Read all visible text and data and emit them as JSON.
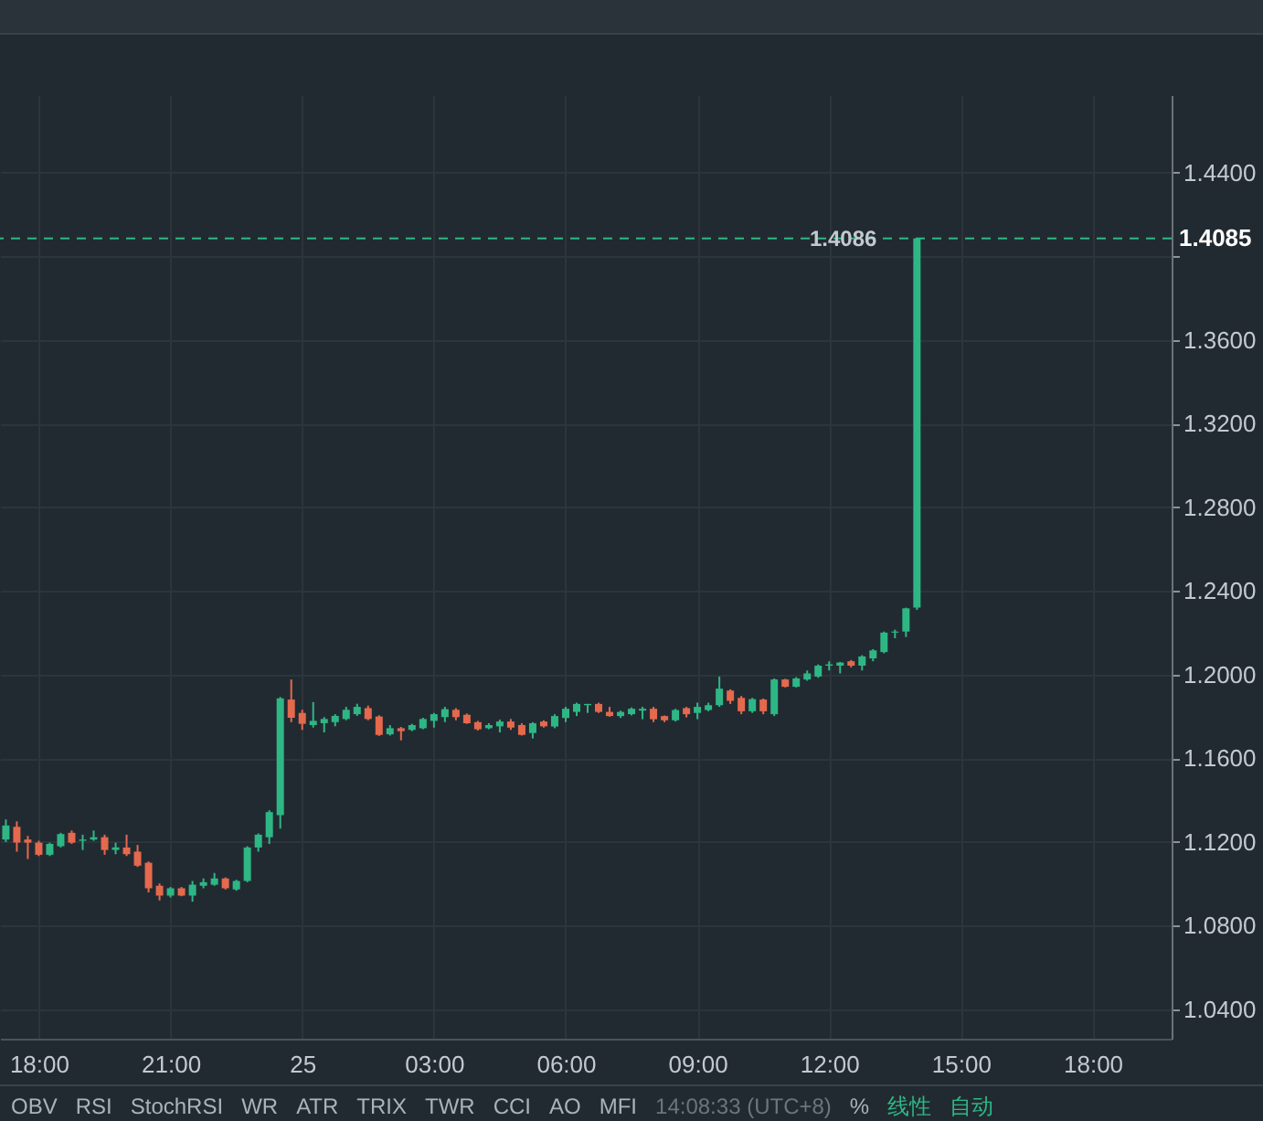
{
  "chart_data": {
    "type": "candlestick",
    "x": [
      "--01-24T17:15",
      "--01-24T17:30",
      "--01-24T17:45",
      "--01-24T18:00",
      "--01-24T18:15",
      "--01-24T18:30",
      "--01-24T18:45",
      "--01-24T19:00",
      "--01-24T19:15",
      "--01-24T19:30",
      "--01-24T19:45",
      "--01-24T20:00",
      "--01-24T20:15",
      "--01-24T20:30",
      "--01-24T20:45",
      "--01-24T21:00",
      "--01-24T21:15",
      "--01-24T21:30",
      "--01-24T21:45",
      "--01-24T22:00",
      "--01-24T22:15",
      "--01-24T22:30",
      "--01-24T22:45",
      "--01-24T23:00",
      "--01-24T23:15",
      "--01-24T23:30",
      "--01-24T23:45",
      "--01-25T00:00",
      "--01-25T00:15",
      "--01-25T00:30",
      "--01-25T00:45",
      "--01-25T01:00",
      "--01-25T01:15",
      "--01-25T01:30",
      "--01-25T01:45",
      "--01-25T02:00",
      "--01-25T02:15",
      "--01-25T02:30",
      "--01-25T02:45",
      "--01-25T03:00",
      "--01-25T03:15",
      "--01-25T03:30",
      "--01-25T03:45",
      "--01-25T04:00",
      "--01-25T04:15",
      "--01-25T04:30",
      "--01-25T04:45",
      "--01-25T05:00",
      "--01-25T05:15",
      "--01-25T05:30",
      "--01-25T05:45",
      "--01-25T06:00",
      "--01-25T06:15",
      "--01-25T06:30",
      "--01-25T06:45",
      "--01-25T07:00",
      "--01-25T07:15",
      "--01-25T07:30",
      "--01-25T07:45",
      "--01-25T08:00",
      "--01-25T08:15",
      "--01-25T08:30",
      "--01-25T08:45",
      "--01-25T09:00",
      "--01-25T09:15",
      "--01-25T09:30",
      "--01-25T09:45",
      "--01-25T10:00",
      "--01-25T10:15",
      "--01-25T10:30",
      "--01-25T10:45",
      "--01-25T11:00",
      "--01-25T11:15",
      "--01-25T11:30",
      "--01-25T11:45",
      "--01-25T12:00",
      "--01-25T12:15",
      "--01-25T12:30",
      "--01-25T12:45",
      "--01-25T13:00",
      "--01-25T13:15",
      "--01-25T13:30",
      "--01-25T13:45",
      "--01-25T14:00"
    ],
    "ohlc": [
      [
        1.1212,
        1.1308,
        1.12,
        1.1279
      ],
      [
        1.1273,
        1.1299,
        1.1154,
        1.1197
      ],
      [
        1.1212,
        1.1229,
        1.1119,
        1.1197
      ],
      [
        1.1197,
        1.1206,
        1.1133,
        1.1139
      ],
      [
        1.1139,
        1.1197,
        1.1133,
        1.1191
      ],
      [
        1.118,
        1.1244,
        1.1174,
        1.1238
      ],
      [
        1.1244,
        1.1255,
        1.1191,
        1.1197
      ],
      [
        1.1206,
        1.1235,
        1.1162,
        1.1212
      ],
      [
        1.1212,
        1.1255,
        1.1206,
        1.1223
      ],
      [
        1.1223,
        1.1235,
        1.1139,
        1.1162
      ],
      [
        1.1162,
        1.1197,
        1.1142,
        1.1174
      ],
      [
        1.1174,
        1.1235,
        1.1133,
        1.1142
      ],
      [
        1.1154,
        1.1186,
        1.1081,
        1.1087
      ],
      [
        1.1101,
        1.1107,
        1.0959,
        1.0979
      ],
      [
        1.0991,
        1.1002,
        1.0921,
        1.0944
      ],
      [
        1.0944,
        1.0985,
        1.0935,
        1.0979
      ],
      [
        1.0979,
        1.0985,
        1.0941,
        1.0944
      ],
      [
        1.0944,
        1.1014,
        1.0915,
        1.0996
      ],
      [
        1.0991,
        1.1026,
        1.0979,
        1.1008
      ],
      [
        1.0996,
        1.1052,
        1.0991,
        1.1026
      ],
      [
        1.1026,
        1.1031,
        1.0973,
        1.0979
      ],
      [
        1.0973,
        1.102,
        1.0967,
        1.1014
      ],
      [
        1.1014,
        1.118,
        1.1008,
        1.1174
      ],
      [
        1.1174,
        1.1241,
        1.1154,
        1.1235
      ],
      [
        1.1223,
        1.1352,
        1.1191,
        1.1343
      ],
      [
        1.1328,
        1.1893,
        1.1264,
        1.1887
      ],
      [
        1.1881,
        1.1977,
        1.1773,
        1.1794
      ],
      [
        1.1817,
        1.1832,
        1.1736,
        1.1765
      ],
      [
        1.1759,
        1.1869,
        1.1747,
        1.1779
      ],
      [
        1.1768,
        1.1797,
        1.1724,
        1.1788
      ],
      [
        1.1773,
        1.1811,
        1.1753,
        1.1803
      ],
      [
        1.1788,
        1.1846,
        1.1782,
        1.1832
      ],
      [
        1.1811,
        1.1861,
        1.1803,
        1.1846
      ],
      [
        1.184,
        1.1852,
        1.1782,
        1.1788
      ],
      [
        1.18,
        1.1806,
        1.1707,
        1.1712
      ],
      [
        1.1715,
        1.1759,
        1.1709,
        1.1744
      ],
      [
        1.1744,
        1.175,
        1.1686,
        1.173
      ],
      [
        1.1736,
        1.1765,
        1.173,
        1.1759
      ],
      [
        1.1744,
        1.1794,
        1.1739,
        1.1788
      ],
      [
        1.1779,
        1.1817,
        1.1747,
        1.1811
      ],
      [
        1.1797,
        1.1846,
        1.1773,
        1.1835
      ],
      [
        1.1832,
        1.184,
        1.1782,
        1.1797
      ],
      [
        1.1808,
        1.1814,
        1.1765,
        1.1768
      ],
      [
        1.1773,
        1.1779,
        1.1733,
        1.1739
      ],
      [
        1.1744,
        1.1768,
        1.1739,
        1.1759
      ],
      [
        1.1753,
        1.1785,
        1.1724,
        1.1776
      ],
      [
        1.1776,
        1.1788,
        1.1736,
        1.1747
      ],
      [
        1.1759,
        1.1768,
        1.1709,
        1.1712
      ],
      [
        1.1721,
        1.1773,
        1.1695,
        1.1768
      ],
      [
        1.1776,
        1.1782,
        1.1747,
        1.1753
      ],
      [
        1.1752,
        1.1811,
        1.1744,
        1.1802
      ],
      [
        1.1793,
        1.1846,
        1.1773,
        1.1837
      ],
      [
        1.1822,
        1.1866,
        1.1802,
        1.186
      ],
      [
        1.1854,
        1.186,
        1.1817,
        1.186
      ],
      [
        1.186,
        1.1866,
        1.1817,
        1.1822
      ],
      [
        1.1822,
        1.1846,
        1.1799,
        1.1802
      ],
      [
        1.1802,
        1.1828,
        1.1793,
        1.1822
      ],
      [
        1.1811,
        1.1843,
        1.1805,
        1.1837
      ],
      [
        1.1828,
        1.1846,
        1.1787,
        1.1837
      ],
      [
        1.1837,
        1.1846,
        1.1773,
        1.1787
      ],
      [
        1.1802,
        1.1805,
        1.1773,
        1.1782
      ],
      [
        1.1782,
        1.1837,
        1.1776,
        1.1831
      ],
      [
        1.184,
        1.1846,
        1.1796,
        1.1811
      ],
      [
        1.1817,
        1.1866,
        1.1787,
        1.1846
      ],
      [
        1.1831,
        1.1866,
        1.1825,
        1.1854
      ],
      [
        1.1854,
        1.1991,
        1.1846,
        1.1933
      ],
      [
        1.1924,
        1.193,
        1.186,
        1.1875
      ],
      [
        1.1889,
        1.1898,
        1.1811,
        1.1825
      ],
      [
        1.1825,
        1.1889,
        1.1817,
        1.1883
      ],
      [
        1.1881,
        1.1886,
        1.1811,
        1.1825
      ],
      [
        1.1811,
        1.1982,
        1.1802,
        1.1977
      ],
      [
        1.1977,
        1.198,
        1.1939,
        1.1942
      ],
      [
        1.1942,
        1.1988,
        1.1939,
        1.1982
      ],
      [
        1.1977,
        1.202,
        1.1971,
        1.2006
      ],
      [
        1.1991,
        1.2049,
        1.1985,
        1.2043
      ],
      [
        1.2043,
        1.2064,
        1.202,
        1.2049
      ],
      [
        1.2043,
        1.2061,
        1.2006,
        1.2058
      ],
      [
        1.2064,
        1.207,
        1.2035,
        1.2043
      ],
      [
        1.2043,
        1.2093,
        1.202,
        1.2087
      ],
      [
        1.2078,
        1.2122,
        1.2064,
        1.2116
      ],
      [
        1.2108,
        1.2206,
        1.2102,
        1.2201
      ],
      [
        1.2201,
        1.2215,
        1.2174,
        1.2206
      ],
      [
        1.2206,
        1.232,
        1.218,
        1.2317
      ],
      [
        1.232,
        1.4086,
        1.231,
        1.4085
      ]
    ],
    "colors": [
      "#2eb785",
      "#e5694d",
      "#e5694d",
      "#e5694d",
      "#2eb785",
      "#2eb785",
      "#e5694d",
      "#2eb785",
      "#2eb785",
      "#e5694d",
      "#2eb785",
      "#e5694d",
      "#e5694d",
      "#e5694d",
      "#e5694d",
      "#2eb785",
      "#e5694d",
      "#2eb785",
      "#2eb785",
      "#2eb785",
      "#e5694d",
      "#2eb785",
      "#2eb785",
      "#2eb785",
      "#2eb785",
      "#2eb785",
      "#e5694d",
      "#e5694d",
      "#2eb785",
      "#2eb785",
      "#2eb785",
      "#2eb785",
      "#2eb785",
      "#e5694d",
      "#e5694d",
      "#2eb785",
      "#e5694d",
      "#2eb785",
      "#2eb785",
      "#2eb785",
      "#2eb785",
      "#e5694d",
      "#e5694d",
      "#e5694d",
      "#2eb785",
      "#2eb785",
      "#e5694d",
      "#e5694d",
      "#2eb785",
      "#e5694d",
      "#2eb785",
      "#2eb785",
      "#2eb785",
      "#2eb785",
      "#e5694d",
      "#e5694d",
      "#2eb785",
      "#2eb785",
      "#2eb785",
      "#e5694d",
      "#e5694d",
      "#2eb785",
      "#e5694d",
      "#2eb785",
      "#2eb785",
      "#2eb785",
      "#e5694d",
      "#e5694d",
      "#2eb785",
      "#e5694d",
      "#2eb785",
      "#e5694d",
      "#2eb785",
      "#2eb785",
      "#2eb785",
      "#2eb785",
      "#2eb785",
      "#e5694d",
      "#2eb785",
      "#2eb785",
      "#2eb785",
      "#2eb785",
      "#2eb785",
      "#2eb785"
    ],
    "xlim": [
      "--01-24T17:07",
      "--01-25T19:48"
    ],
    "xticks": [
      {
        "value": "--01-24T18:00",
        "label": "18:00"
      },
      {
        "value": "--01-24T21:00",
        "label": "21:00"
      },
      {
        "value": "--01-25T00:00",
        "label": "25"
      },
      {
        "value": "--01-25T03:00",
        "label": "03:00"
      },
      {
        "value": "--01-25T06:00",
        "label": "06:00"
      },
      {
        "value": "--01-25T09:00",
        "label": "09:00"
      },
      {
        "value": "--01-25T12:00",
        "label": "12:00"
      },
      {
        "value": "--01-25T15:00",
        "label": "15:00"
      },
      {
        "value": "--01-25T18:00",
        "label": "18:00"
      }
    ],
    "ylim": [
      1.026,
      1.477
    ],
    "yticks": [
      {
        "value": 1.04,
        "label": "1.0400"
      },
      {
        "value": 1.08,
        "label": "1.0800"
      },
      {
        "value": 1.12,
        "label": "1.1200"
      },
      {
        "value": 1.16,
        "label": "1.1600"
      },
      {
        "value": 1.2,
        "label": "1.2000"
      },
      {
        "value": 1.24,
        "label": "1.2400"
      },
      {
        "value": 1.28,
        "label": "1.2800"
      },
      {
        "value": 1.32,
        "label": "1.3200"
      },
      {
        "value": 1.36,
        "label": "1.3600"
      },
      {
        "value": 1.4,
        "label": null
      },
      {
        "value": 1.44,
        "label": "1.4400"
      }
    ],
    "grid": true,
    "ref_lines": [
      {
        "axis": "y",
        "value": 1.4085,
        "label": "1.4085",
        "color": "#2eb785",
        "line_style": "dashed"
      }
    ],
    "annotations": [
      {
        "text": "1.4086",
        "x": "--01-25T14:00",
        "y": 1.4086
      },
      "OBV",
      "RSI",
      "StochRSI",
      "WR",
      "ATR",
      "TRIX",
      "TWR",
      "CCI",
      "AO",
      "MFI",
      "14:08:33 (UTC+8)",
      "%",
      "线性",
      "自动"
    ]
  }
}
